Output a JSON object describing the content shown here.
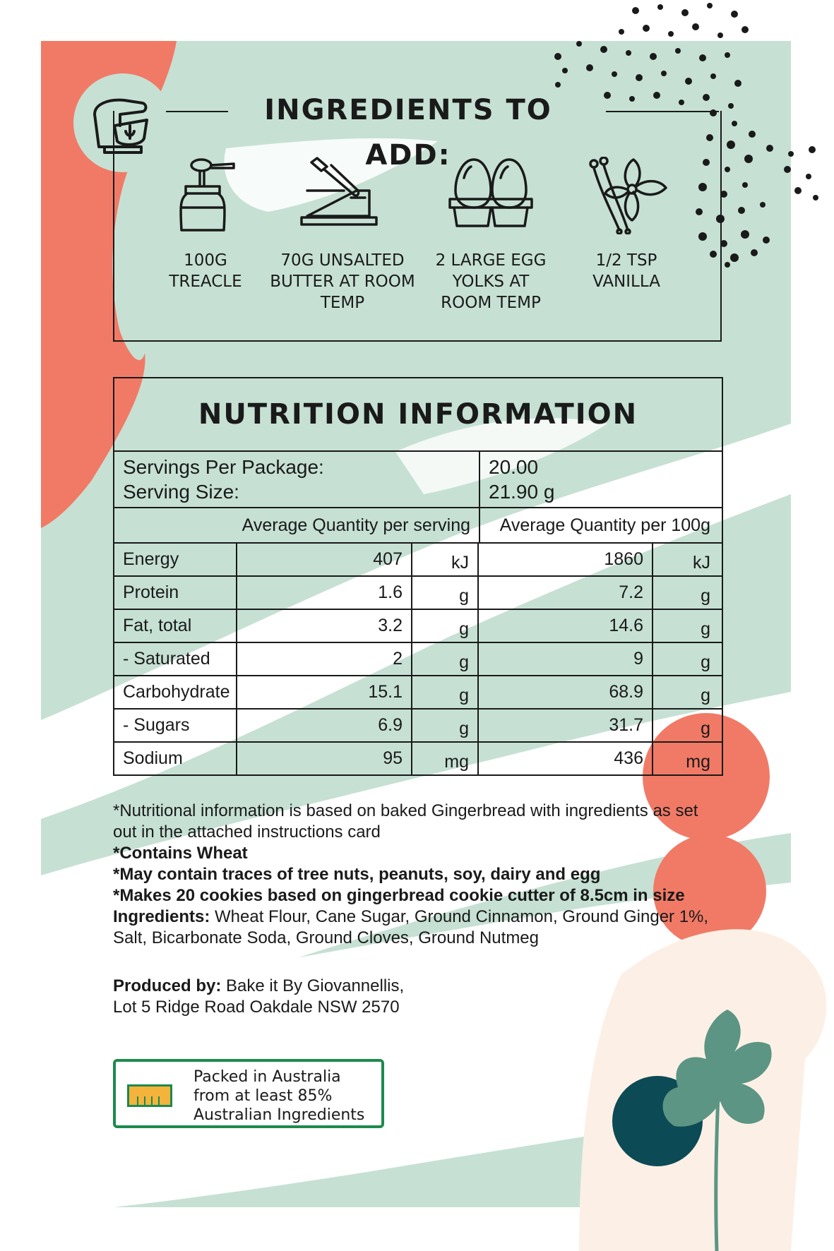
{
  "colors": {
    "mint": "#c6e1d3",
    "coral": "#f17a66",
    "ink": "#1a1a1a",
    "teal": "#0c4a55",
    "leaf": "#5c9583",
    "cream": "#fcf0e6",
    "badge_green": "#1d8a4e",
    "badge_yellow": "#f4b33a"
  },
  "ingredients": {
    "title": "INGREDIENTS TO ADD:",
    "icon": "stand-mixer-icon",
    "items": [
      {
        "icon": "treacle-jar-icon",
        "lines": [
          "100g",
          "TREACLE"
        ]
      },
      {
        "icon": "butter-knife-icon",
        "lines": [
          "70g UNSALTED",
          "BUTTER AT ROOM",
          "TEMP"
        ]
      },
      {
        "icon": "eggs-icon",
        "lines": [
          "2 LARGE EGG",
          "YOLKS AT",
          "ROOM TEMP"
        ]
      },
      {
        "icon": "vanilla-flower-icon",
        "lines": [
          "1/2 TSP",
          "VANILLA"
        ]
      }
    ]
  },
  "nutrition": {
    "title": "NUTRITION INFORMATION",
    "servings_label": "Servings Per Package:",
    "serving_size_label": "Serving Size:",
    "servings_value": "20.00",
    "serving_size_value": "21.90 g",
    "header_per_serving": "Average Quantity per serving",
    "header_per_100g": "Average Quantity per 100g",
    "rows": [
      {
        "name": "Energy",
        "serving": "407",
        "serving_unit": "kJ",
        "per100": "1860",
        "per100_unit": "kJ"
      },
      {
        "name": "Protein",
        "serving": "1.6",
        "serving_unit": "g",
        "per100": "7.2",
        "per100_unit": "g"
      },
      {
        "name": "Fat, total",
        "serving": "3.2",
        "serving_unit": "g",
        "per100": "14.6",
        "per100_unit": "g"
      },
      {
        "name": "- Saturated",
        "serving": "2",
        "serving_unit": "g",
        "per100": "9",
        "per100_unit": "g"
      },
      {
        "name": "Carbohydrate",
        "serving": "15.1",
        "serving_unit": "g",
        "per100": "68.9",
        "per100_unit": "g"
      },
      {
        "name": "- Sugars",
        "serving": "6.9",
        "serving_unit": "g",
        "per100": "31.7",
        "per100_unit": "g"
      },
      {
        "name": "Sodium",
        "serving": "95",
        "serving_unit": "mg",
        "per100": "436",
        "per100_unit": "mg"
      }
    ]
  },
  "notes": {
    "note1": "*Nutritional information is based on baked Gingerbread with ingredients as set out in the attached instructions card",
    "wheat": "*Contains Wheat",
    "traces": "*May contain traces of tree nuts, peanuts, soy, dairy and egg",
    "makes": "*Makes 20 cookies based on gingerbread cookie cutter of 8.5cm in size",
    "ingredients_label": "Ingredients:",
    "ingredients_text": " Wheat Flour, Cane Sugar, Ground Cinnamon, Ground Ginger 1%, Salt, Bicarbonate Soda, Ground Cloves, Ground Nutmeg"
  },
  "producer": {
    "label": "Produced by:",
    "name": " Bake it By Giovannellis,",
    "address": "Lot 5 Ridge Road Oakdale NSW 2570"
  },
  "origin_badge": {
    "line1": "Packed in Australia",
    "line2": "from at least 85%",
    "line3": "Australian Ingredients",
    "percent": 85
  }
}
